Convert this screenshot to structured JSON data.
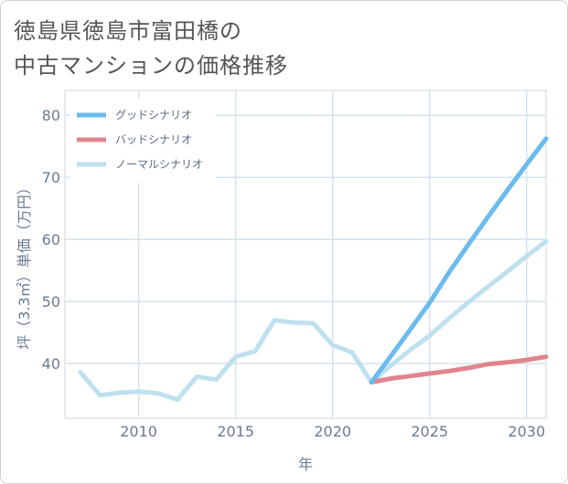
{
  "chart_data": {
    "type": "line",
    "title_line1": "徳島県徳島市富田橋の",
    "title_line2": "中古マンションの価格推移",
    "xlabel": "年",
    "ylabel": "坪（3.3㎡）単価（万円）",
    "xlim": [
      2006.2,
      2031
    ],
    "ylim": [
      31.2,
      84
    ],
    "xticks": [
      2010,
      2015,
      2020,
      2025,
      2030
    ],
    "yticks": [
      40,
      50,
      60,
      70,
      80
    ],
    "grid": true,
    "legend_position": "top-left",
    "series": [
      {
        "name": "グッドシナリオ",
        "color": "#6bbbee",
        "x": [
          2022,
          2023,
          2024,
          2025,
          2026,
          2027,
          2028,
          2029,
          2030,
          2031
        ],
        "y": [
          37.0,
          41.2,
          45.5,
          49.8,
          54.7,
          59.2,
          63.6,
          67.9,
          72.1,
          76.2
        ]
      },
      {
        "name": "バッドシナリオ",
        "color": "#e0848d",
        "x": [
          2022,
          2023,
          2024,
          2025,
          2026,
          2027,
          2028,
          2029,
          2030,
          2031
        ],
        "y": [
          37.0,
          37.6,
          38.0,
          38.4,
          38.8,
          39.3,
          39.9,
          40.2,
          40.6,
          41.1
        ]
      },
      {
        "name": "ノーマルシナリオ",
        "color": "#bfe0ee",
        "x": [
          2007,
          2008,
          2009,
          2010,
          2011,
          2012,
          2013,
          2014,
          2015,
          2016,
          2017,
          2018,
          2019,
          2020,
          2021,
          2022,
          2023,
          2024,
          2025,
          2026,
          2027,
          2028,
          2029,
          2030,
          2031
        ],
        "y": [
          38.6,
          34.9,
          35.3,
          35.5,
          35.2,
          34.2,
          37.9,
          37.4,
          41.1,
          42.0,
          47.0,
          46.6,
          46.5,
          43.0,
          41.8,
          37.0,
          39.7,
          42.2,
          44.5,
          47.3,
          49.9,
          52.4,
          54.8,
          57.3,
          59.7
        ]
      }
    ]
  }
}
